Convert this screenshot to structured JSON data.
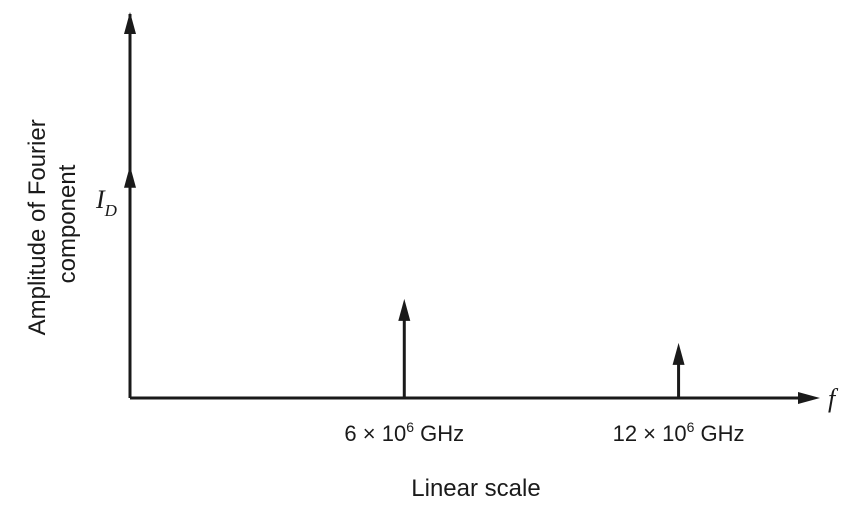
{
  "chart_data": {
    "type": "bar",
    "title": "",
    "ylabel_lines": [
      "Amplitude of Fourier",
      "component"
    ],
    "xlabel": "Linear scale",
    "x_symbol": "f",
    "dc_label": {
      "symbol": "I",
      "subscript": "D"
    },
    "grid": false,
    "legend": "none",
    "xlim": [
      0,
      14
    ],
    "ylim": [
      0,
      1
    ],
    "series": [
      {
        "values": [
          {
            "x": 0,
            "y": 0.717,
            "label": null
          },
          {
            "x": 6,
            "y": 0.306,
            "label": {
              "coef": "6",
              "times": "×",
              "base": "10",
              "exp": "6",
              "unit": "GHz"
            }
          },
          {
            "x": 12,
            "y": 0.17,
            "label": {
              "coef": "12",
              "times": "×",
              "base": "10",
              "exp": "6",
              "unit": "GHz"
            }
          }
        ]
      }
    ]
  },
  "colors": {
    "ink": "#1a1a1a"
  }
}
